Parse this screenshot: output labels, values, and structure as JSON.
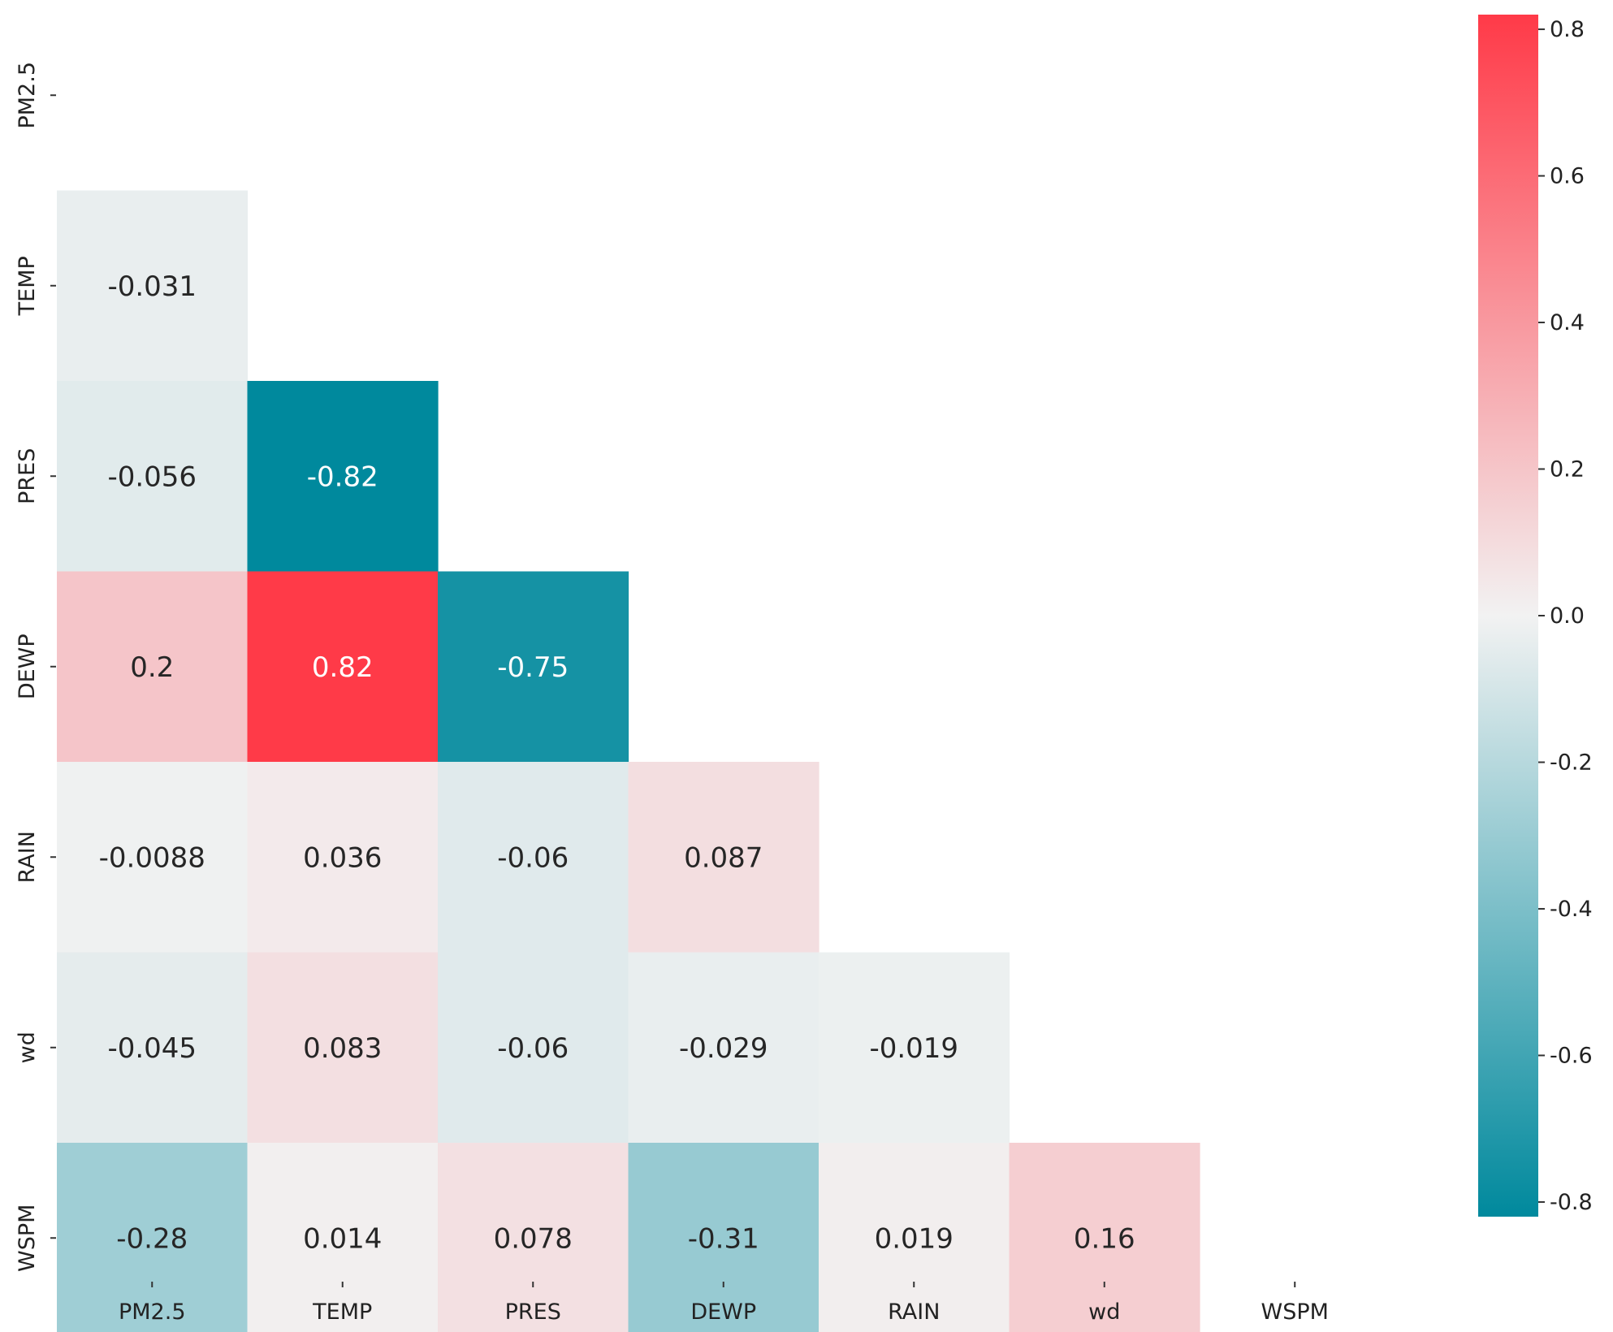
{
  "chart_data": {
    "type": "heatmap",
    "title": "",
    "xlabel": "",
    "ylabel": "",
    "variables": [
      "PM2.5",
      "TEMP",
      "PRES",
      "DEWP",
      "RAIN",
      "wd",
      "WSPM"
    ],
    "mask": "upper-triangle-including-diagonal",
    "cells": [
      {
        "row": "TEMP",
        "col": "PM2.5",
        "value": -0.031,
        "label": "-0.031"
      },
      {
        "row": "PRES",
        "col": "PM2.5",
        "value": -0.056,
        "label": "-0.056"
      },
      {
        "row": "PRES",
        "col": "TEMP",
        "value": -0.82,
        "label": "-0.82"
      },
      {
        "row": "DEWP",
        "col": "PM2.5",
        "value": 0.2,
        "label": "0.2"
      },
      {
        "row": "DEWP",
        "col": "TEMP",
        "value": 0.82,
        "label": "0.82"
      },
      {
        "row": "DEWP",
        "col": "PRES",
        "value": -0.75,
        "label": "-0.75"
      },
      {
        "row": "RAIN",
        "col": "PM2.5",
        "value": -0.0088,
        "label": "-0.0088"
      },
      {
        "row": "RAIN",
        "col": "TEMP",
        "value": 0.036,
        "label": "0.036"
      },
      {
        "row": "RAIN",
        "col": "PRES",
        "value": -0.06,
        "label": "-0.06"
      },
      {
        "row": "RAIN",
        "col": "DEWP",
        "value": 0.087,
        "label": "0.087"
      },
      {
        "row": "wd",
        "col": "PM2.5",
        "value": -0.045,
        "label": "-0.045"
      },
      {
        "row": "wd",
        "col": "TEMP",
        "value": 0.083,
        "label": "0.083"
      },
      {
        "row": "wd",
        "col": "PRES",
        "value": -0.06,
        "label": "-0.06"
      },
      {
        "row": "wd",
        "col": "DEWP",
        "value": -0.029,
        "label": "-0.029"
      },
      {
        "row": "wd",
        "col": "RAIN",
        "value": -0.019,
        "label": "-0.019"
      },
      {
        "row": "WSPM",
        "col": "PM2.5",
        "value": -0.28,
        "label": "-0.28"
      },
      {
        "row": "WSPM",
        "col": "TEMP",
        "value": 0.014,
        "label": "0.014"
      },
      {
        "row": "WSPM",
        "col": "PRES",
        "value": 0.078,
        "label": "0.078"
      },
      {
        "row": "WSPM",
        "col": "DEWP",
        "value": -0.31,
        "label": "-0.31"
      },
      {
        "row": "WSPM",
        "col": "RAIN",
        "value": 0.019,
        "label": "0.019"
      },
      {
        "row": "WSPM",
        "col": "wd",
        "value": 0.16,
        "label": "0.16"
      }
    ],
    "colorbar": {
      "range": [
        -0.82,
        0.82
      ],
      "ticks": [
        0.8,
        0.6,
        0.4,
        0.2,
        0.0,
        -0.2,
        -0.4,
        -0.6,
        -0.8
      ],
      "tick_labels": [
        "0.8",
        "0.6",
        "0.4",
        "0.2",
        "0.0",
        "-0.2",
        "-0.4",
        "-0.6",
        "-0.8"
      ],
      "placement": "right"
    },
    "colors": {
      "negative": "#00899d",
      "neutral": "#f2f2f2",
      "positive": "#ff3a48",
      "text_dark": "#262626",
      "text_light": "#ffffff"
    }
  }
}
